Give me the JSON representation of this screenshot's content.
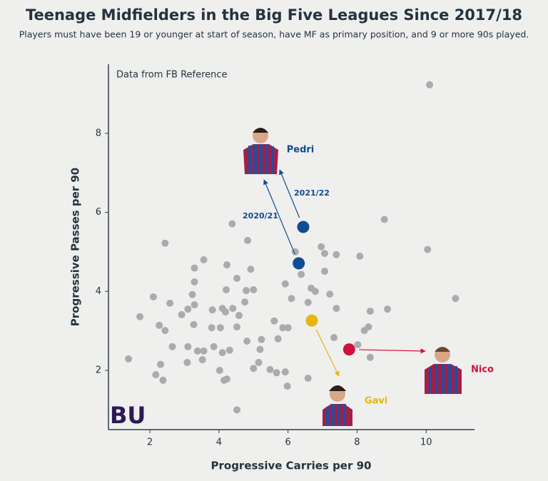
{
  "chart_data": {
    "type": "scatter",
    "title": "Teenage Midfielders in the Big Five Leagues Since 2017/18",
    "subtitle": "Players must have been 19 or younger at start of season, have MF as primary position, and 9 or more 90s played.",
    "xlabel": "Progressive Carries per 90",
    "ylabel": "Progressive Passes per 90",
    "note": "Data from FB Reference",
    "logo_text": "BU",
    "color": "#a9abaf",
    "xlim": [
      0.8,
      11.4
    ],
    "ylim": [
      0.5,
      9.75
    ],
    "xticks": [
      2,
      4,
      6,
      8,
      10
    ],
    "yticks": [
      2,
      4,
      6,
      8
    ],
    "x": [
      10.1,
      8.79,
      10.04,
      10.85,
      8.88,
      8.38,
      8.33,
      8.21,
      8.02,
      8.38,
      8.08,
      7.4,
      7.06,
      6.96,
      7.06,
      7.21,
      7.4,
      7.33,
      6.79,
      6.67,
      6.58,
      6.38,
      6.21,
      6.1,
      5.92,
      6.0,
      5.85,
      5.71,
      5.6,
      5.92,
      5.98,
      5.67,
      5.48,
      6.58,
      4.83,
      4.38,
      4.92,
      5.0,
      4.79,
      4.52,
      4.23,
      4.21,
      4.75,
      4.58,
      4.4,
      4.19,
      4.1,
      3.81,
      4.52,
      4.04,
      3.79,
      5.23,
      4.81,
      5.19,
      4.31,
      4.1,
      3.85,
      5.15,
      5.0,
      4.02,
      4.23,
      4.15,
      4.52,
      3.56,
      3.29,
      3.29,
      3.23,
      3.29,
      3.1,
      2.92,
      3.27,
      2.58,
      2.44,
      2.1,
      1.71,
      2.27,
      2.44,
      2.65,
      3.1,
      3.38,
      3.56,
      3.52,
      3.08,
      2.31,
      2.17,
      2.38,
      1.38
    ],
    "y": [
      9.23,
      5.82,
      5.06,
      3.82,
      3.55,
      3.5,
      3.1,
      3.01,
      2.65,
      2.33,
      4.89,
      4.93,
      4.96,
      5.13,
      4.51,
      3.93,
      3.57,
      2.83,
      4.0,
      4.08,
      3.72,
      4.43,
      5.0,
      3.82,
      4.19,
      3.08,
      3.08,
      2.8,
      3.25,
      1.96,
      1.6,
      1.94,
      2.02,
      1.8,
      5.29,
      5.71,
      4.56,
      4.04,
      4.02,
      4.33,
      4.67,
      4.04,
      3.73,
      3.39,
      3.57,
      3.48,
      3.57,
      3.53,
      3.1,
      3.08,
      3.08,
      2.78,
      2.74,
      2.53,
      2.51,
      2.45,
      2.6,
      2.2,
      2.05,
      2.0,
      1.78,
      1.75,
      1.0,
      4.8,
      4.59,
      4.24,
      3.92,
      3.66,
      3.55,
      3.41,
      3.16,
      3.7,
      5.22,
      3.86,
      3.36,
      3.14,
      3.01,
      2.6,
      2.6,
      2.49,
      2.49,
      2.27,
      2.2,
      2.15,
      1.89,
      1.75,
      2.29
    ],
    "highlights": [
      {
        "label": "Pedri",
        "color": "#0f4c92",
        "x": [
          6.31,
          6.44
        ],
        "y": [
          4.71,
          5.63
        ],
        "point_labels": [
          "2020/21",
          "2021/22"
        ]
      },
      {
        "label": "Gavi",
        "color": "#e6b60f",
        "x": [
          6.69
        ],
        "y": [
          3.26
        ]
      },
      {
        "label": "Nico",
        "color": "#d1123a",
        "x": [
          7.77
        ],
        "y": [
          2.53
        ]
      }
    ]
  }
}
